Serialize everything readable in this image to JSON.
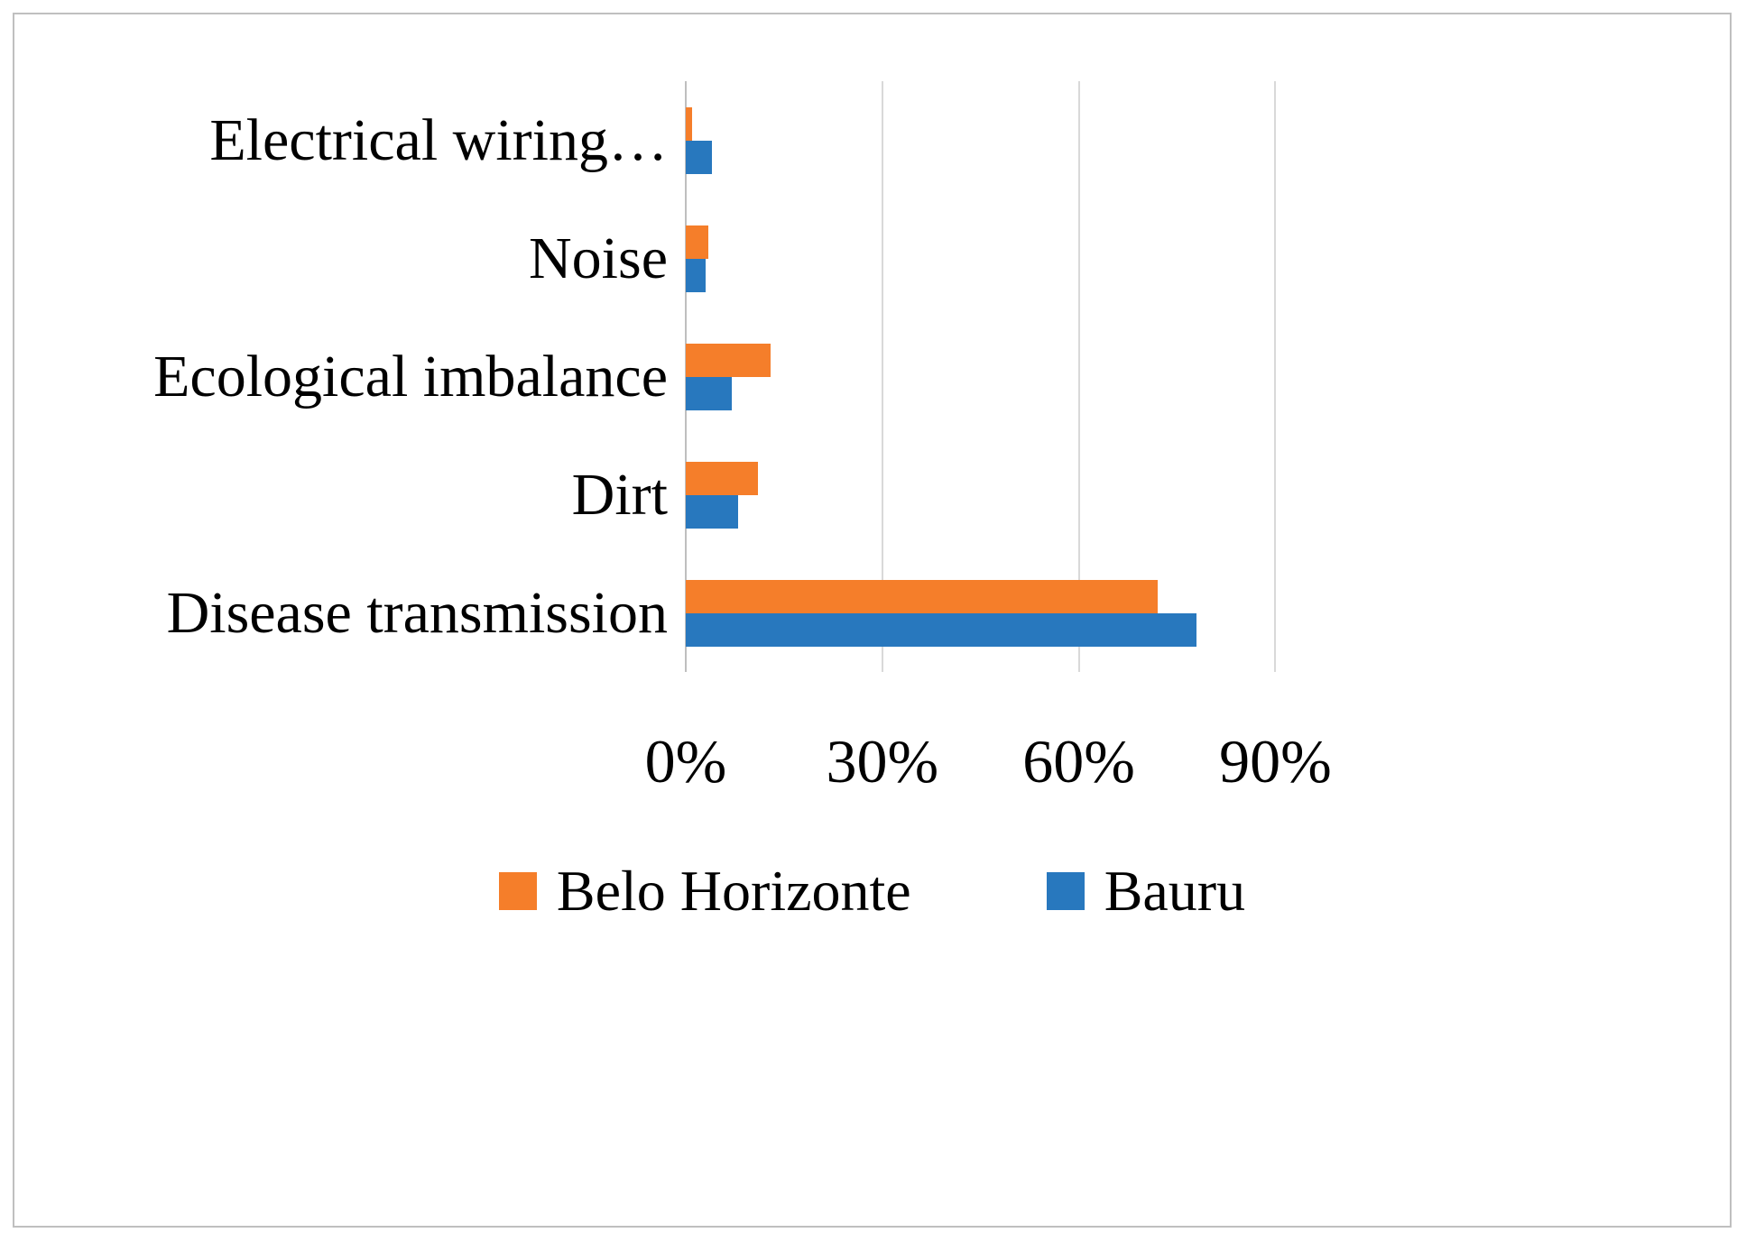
{
  "chart_data": {
    "type": "bar",
    "orientation": "horizontal",
    "title": "",
    "xlabel": "",
    "ylabel": "",
    "categories": [
      "Electrical wiring…",
      "Noise",
      "Ecological imbalance",
      "Dirt",
      "Disease transmission"
    ],
    "series": [
      {
        "name": "Belo Horizonte",
        "color": "#F57E2A",
        "values": [
          1,
          3.5,
          13,
          11,
          72
        ]
      },
      {
        "name": "Bauru",
        "color": "#2878BE",
        "values": [
          4,
          3,
          7,
          8,
          78
        ]
      }
    ],
    "x_ticks": [
      {
        "value": 0,
        "label": "0%"
      },
      {
        "value": 30,
        "label": "30%"
      },
      {
        "value": 60,
        "label": "60%"
      },
      {
        "value": 90,
        "label": "90%"
      }
    ],
    "xlim": [
      0,
      100
    ],
    "grid": "vertical-only",
    "legend_position": "bottom"
  },
  "colors": {
    "gridline": "#D9D9D9",
    "zero_line": "#BFBFBF",
    "frame_border": "#BFBFBF",
    "text": "#000000",
    "background": "#FFFFFF"
  }
}
